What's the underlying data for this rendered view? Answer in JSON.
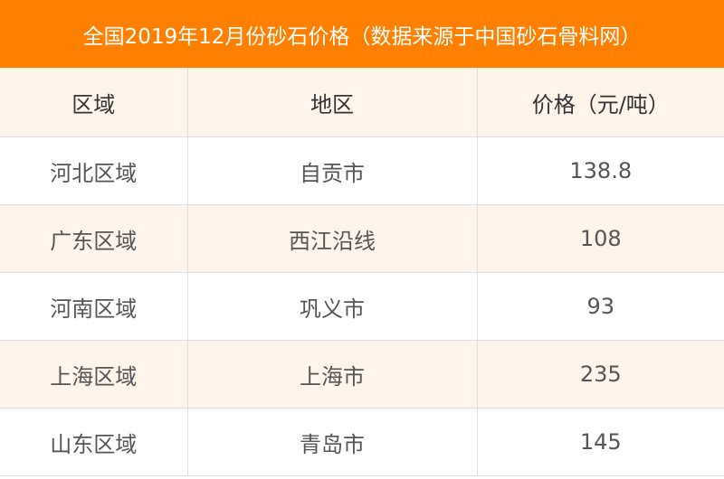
{
  "title": "全国2019年12月份砂石价格（数据来源于中国砂石骨料网）",
  "table": {
    "headers": [
      "区域",
      "地区",
      "价格（元/吨）"
    ],
    "rows": [
      [
        "河北区域",
        "自贡市",
        "138.8"
      ],
      [
        "广东区域",
        "西江沿线",
        "108"
      ],
      [
        "河南区域",
        "巩义市",
        "93"
      ],
      [
        "上海区域",
        "上海市",
        "235"
      ],
      [
        "山东区域",
        "青岛市",
        "145"
      ]
    ]
  },
  "colors": {
    "header_bar": "#FF7F00",
    "alt_row": "#FEF4EA"
  }
}
